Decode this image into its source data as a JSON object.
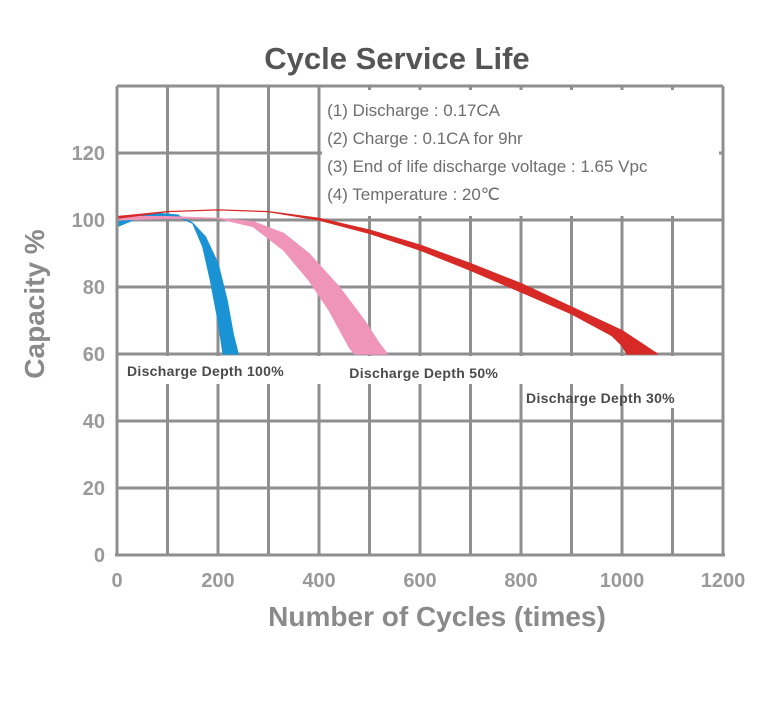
{
  "chart_data": {
    "type": "area",
    "title": "Cycle Service Life",
    "xlabel": "Number of Cycles (times)",
    "ylabel": "Capacity %",
    "xlim": [
      0,
      1200
    ],
    "ylim": [
      0,
      140
    ],
    "xticks": [
      0,
      200,
      400,
      600,
      800,
      1000,
      1200
    ],
    "yticks": [
      0,
      20,
      40,
      60,
      80,
      100,
      120
    ],
    "grid": true,
    "conditions": [
      "(1) Discharge : 0.17CA",
      "(2) Charge : 0.1CA for 9hr",
      "(3) End of life discharge voltage : 1.65 Vpc",
      "(4) Temperature : 20℃"
    ],
    "series": [
      {
        "name": "Discharge Depth 100%",
        "color": "#1a93d5",
        "upper": [
          [
            0,
            100
          ],
          [
            40,
            101.5
          ],
          [
            80,
            102
          ],
          [
            120,
            101.5
          ],
          [
            150,
            99
          ],
          [
            170,
            92
          ],
          [
            185,
            82
          ],
          [
            200,
            70
          ],
          [
            210,
            60
          ]
        ],
        "lower": [
          [
            0,
            98
          ],
          [
            40,
            100.5
          ],
          [
            80,
            101
          ],
          [
            120,
            101
          ],
          [
            150,
            99
          ],
          [
            175,
            95
          ],
          [
            200,
            87
          ],
          [
            218,
            76
          ],
          [
            230,
            66
          ],
          [
            240,
            60
          ]
        ]
      },
      {
        "name": "Discharge Depth 50%",
        "color": "#f095ba",
        "upper": [
          [
            0,
            101
          ],
          [
            100,
            101
          ],
          [
            200,
            100.5
          ],
          [
            270,
            98
          ],
          [
            330,
            91
          ],
          [
            380,
            82
          ],
          [
            420,
            73
          ],
          [
            460,
            62
          ],
          [
            470,
            60
          ]
        ],
        "lower": [
          [
            0,
            100
          ],
          [
            100,
            100.5
          ],
          [
            200,
            100.5
          ],
          [
            270,
            99.5
          ],
          [
            330,
            96
          ],
          [
            380,
            90
          ],
          [
            440,
            80
          ],
          [
            490,
            70
          ],
          [
            520,
            63
          ],
          [
            535,
            60
          ]
        ]
      },
      {
        "name": "Discharge Depth 30%",
        "color": "#d72a27",
        "upper": [
          [
            0,
            101
          ],
          [
            100,
            102.5
          ],
          [
            200,
            103
          ],
          [
            300,
            102.5
          ],
          [
            400,
            100
          ],
          [
            500,
            96
          ],
          [
            600,
            91
          ],
          [
            700,
            85
          ],
          [
            800,
            78.5
          ],
          [
            900,
            72
          ],
          [
            980,
            65.5
          ],
          [
            1000,
            62.5
          ],
          [
            1010,
            60
          ]
        ],
        "lower": [
          [
            0,
            100.5
          ],
          [
            100,
            102.5
          ],
          [
            200,
            103
          ],
          [
            300,
            102.5
          ],
          [
            400,
            100.5
          ],
          [
            500,
            97
          ],
          [
            600,
            92.5
          ],
          [
            700,
            87
          ],
          [
            800,
            81
          ],
          [
            900,
            74
          ],
          [
            1000,
            67
          ],
          [
            1040,
            63
          ],
          [
            1070,
            60
          ]
        ]
      }
    ]
  }
}
